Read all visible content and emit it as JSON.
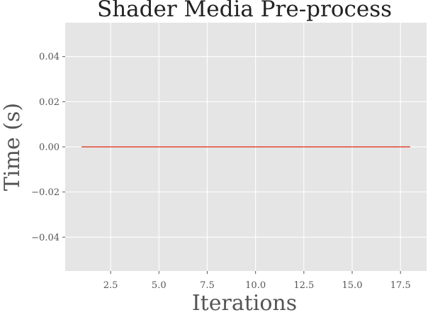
{
  "chart_data": {
    "type": "line",
    "title": "Shader Media Pre-process",
    "xlabel": "Iterations",
    "ylabel": "Time (s)",
    "xlim": [
      0.15,
      18.85
    ],
    "ylim": [
      -0.055,
      0.055
    ],
    "x_ticks": [
      2.5,
      5.0,
      7.5,
      10.0,
      12.5,
      15.0,
      17.5
    ],
    "x_tick_labels": [
      "2.5",
      "5.0",
      "7.5",
      "10.0",
      "12.5",
      "15.0",
      "17.5"
    ],
    "y_ticks": [
      -0.04,
      -0.02,
      0.0,
      0.02,
      0.04
    ],
    "y_tick_labels": [
      "−0.04",
      "−0.02",
      "0.00",
      "0.02",
      "0.04"
    ],
    "grid": true,
    "series": [
      {
        "color": "#E24A33",
        "x": [
          1,
          2,
          3,
          4,
          5,
          6,
          7,
          8,
          9,
          10,
          11,
          12,
          13,
          14,
          15,
          16,
          17,
          18
        ],
        "y": [
          0,
          0,
          0,
          0,
          0,
          0,
          0,
          0,
          0,
          0,
          0,
          0,
          0,
          0,
          0,
          0,
          0,
          0
        ]
      }
    ],
    "colors": {
      "plot_background": "#E5E5E5",
      "grid": "#FFFFFF"
    }
  }
}
